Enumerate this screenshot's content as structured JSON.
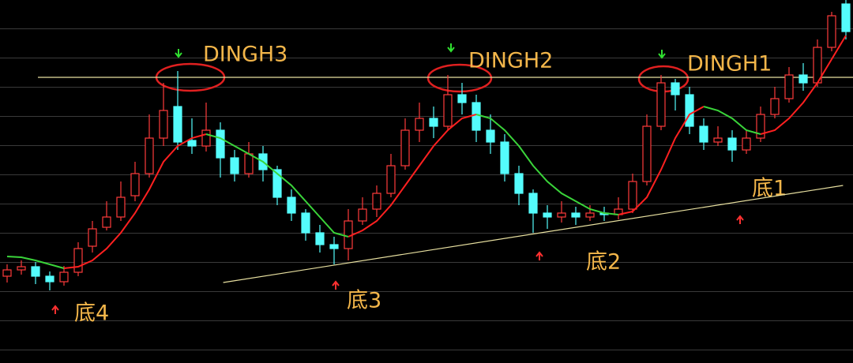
{
  "chart_data": {
    "type": "candlestick",
    "xlim": [
      -0.5,
      59.5
    ],
    "ylim": [
      0,
      46
    ],
    "up_color": "#ff3b3b",
    "down_color": "#54fcfc",
    "open": [
      11.0,
      11.8,
      12.2,
      11.0,
      10.3,
      11.5,
      14.8,
      17.2,
      18.5,
      21.2,
      24.0,
      28.5,
      32.5,
      28.2,
      27.5,
      29.5,
      26.0,
      24.0,
      26.5,
      24.5,
      21.0,
      19.0,
      16.5,
      15.0,
      14.5,
      18.0,
      19.5,
      21.5,
      25.0,
      29.5,
      31.0,
      30.0,
      34.0,
      33.0,
      29.5,
      28.0,
      24.0,
      21.5,
      19.0,
      18.5,
      19.0,
      18.5,
      19.0,
      18.8,
      19.5,
      23.0,
      30.0,
      35.5,
      34.0,
      30.0,
      28.0,
      28.5,
      27.0,
      28.5,
      31.5,
      33.5,
      36.5,
      35.5,
      40.0,
      45.5
    ],
    "high": [
      12.5,
      13.0,
      12.8,
      11.6,
      12.3,
      15.3,
      18.0,
      20.5,
      23.0,
      25.5,
      31.5,
      35.5,
      37.0,
      31.0,
      33.0,
      30.5,
      27.0,
      28.0,
      27.5,
      25.0,
      22.0,
      19.5,
      17.5,
      16.0,
      19.5,
      21.0,
      22.5,
      26.5,
      31.0,
      33.0,
      32.5,
      36.5,
      35.5,
      34.0,
      31.5,
      29.0,
      25.0,
      22.0,
      20.0,
      20.5,
      19.8,
      20.0,
      19.8,
      21.0,
      24.0,
      31.5,
      36.5,
      36.0,
      35.0,
      31.0,
      30.0,
      29.5,
      29.5,
      32.5,
      35.0,
      37.5,
      38.0,
      41.0,
      44.5,
      46.0
    ],
    "low": [
      10.2,
      11.2,
      10.0,
      9.2,
      9.8,
      11.0,
      14.0,
      16.8,
      18.0,
      20.5,
      23.5,
      27.5,
      27.0,
      26.5,
      26.8,
      23.5,
      23.0,
      23.5,
      23.0,
      20.0,
      18.0,
      15.5,
      14.0,
      12.5,
      13.0,
      17.5,
      18.5,
      21.0,
      24.5,
      28.0,
      28.5,
      29.5,
      31.5,
      28.0,
      26.5,
      23.0,
      20.0,
      16.5,
      17.0,
      17.8,
      17.5,
      18.0,
      18.0,
      18.2,
      19.0,
      22.5,
      29.5,
      32.0,
      29.0,
      27.0,
      27.5,
      25.5,
      26.5,
      28.0,
      31.0,
      33.0,
      34.5,
      35.0,
      39.5,
      41.0
    ],
    "close": [
      11.8,
      12.2,
      11.0,
      10.3,
      11.5,
      14.5,
      17.0,
      18.5,
      21.0,
      24.0,
      28.5,
      32.0,
      28.0,
      27.5,
      29.5,
      26.0,
      24.0,
      26.5,
      24.5,
      21.0,
      19.0,
      16.5,
      15.0,
      14.5,
      18.0,
      19.5,
      21.5,
      25.0,
      29.5,
      31.0,
      30.0,
      34.0,
      33.0,
      29.5,
      28.0,
      24.0,
      21.5,
      19.0,
      18.5,
      19.0,
      18.5,
      19.0,
      18.8,
      19.5,
      23.0,
      30.0,
      35.5,
      34.0,
      30.0,
      28.0,
      28.5,
      27.0,
      28.5,
      31.5,
      33.5,
      36.5,
      35.5,
      40.0,
      44.0,
      42.0
    ],
    "ma": {
      "rise_color": "#ff2020",
      "fall_color": "#3ad43a",
      "values": [
        13.5,
        13.4,
        13.0,
        12.5,
        12.0,
        12.2,
        13.0,
        14.5,
        16.5,
        19.0,
        22.0,
        25.5,
        27.5,
        28.5,
        29.0,
        28.5,
        27.5,
        26.5,
        25.5,
        24.0,
        22.5,
        20.5,
        18.5,
        16.5,
        16.0,
        16.8,
        18.0,
        20.0,
        22.5,
        25.0,
        27.5,
        29.5,
        31.0,
        31.5,
        31.0,
        29.5,
        27.5,
        25.0,
        23.0,
        21.5,
        20.5,
        19.5,
        19.0,
        18.8,
        19.2,
        21.0,
        24.5,
        28.5,
        31.5,
        32.5,
        32.0,
        31.0,
        29.5,
        29.0,
        29.5,
        31.0,
        33.0,
        35.5,
        38.5,
        41.5
      ]
    },
    "resistance": 36.2,
    "support": {
      "x": [
        15.2,
        58.8
      ],
      "y": [
        10.2,
        22.5
      ]
    },
    "tops": [
      "DINGH3",
      "DINGH2",
      "DINGH1"
    ],
    "bottoms": [
      "底4",
      "底3",
      "底2",
      "底1"
    ]
  }
}
